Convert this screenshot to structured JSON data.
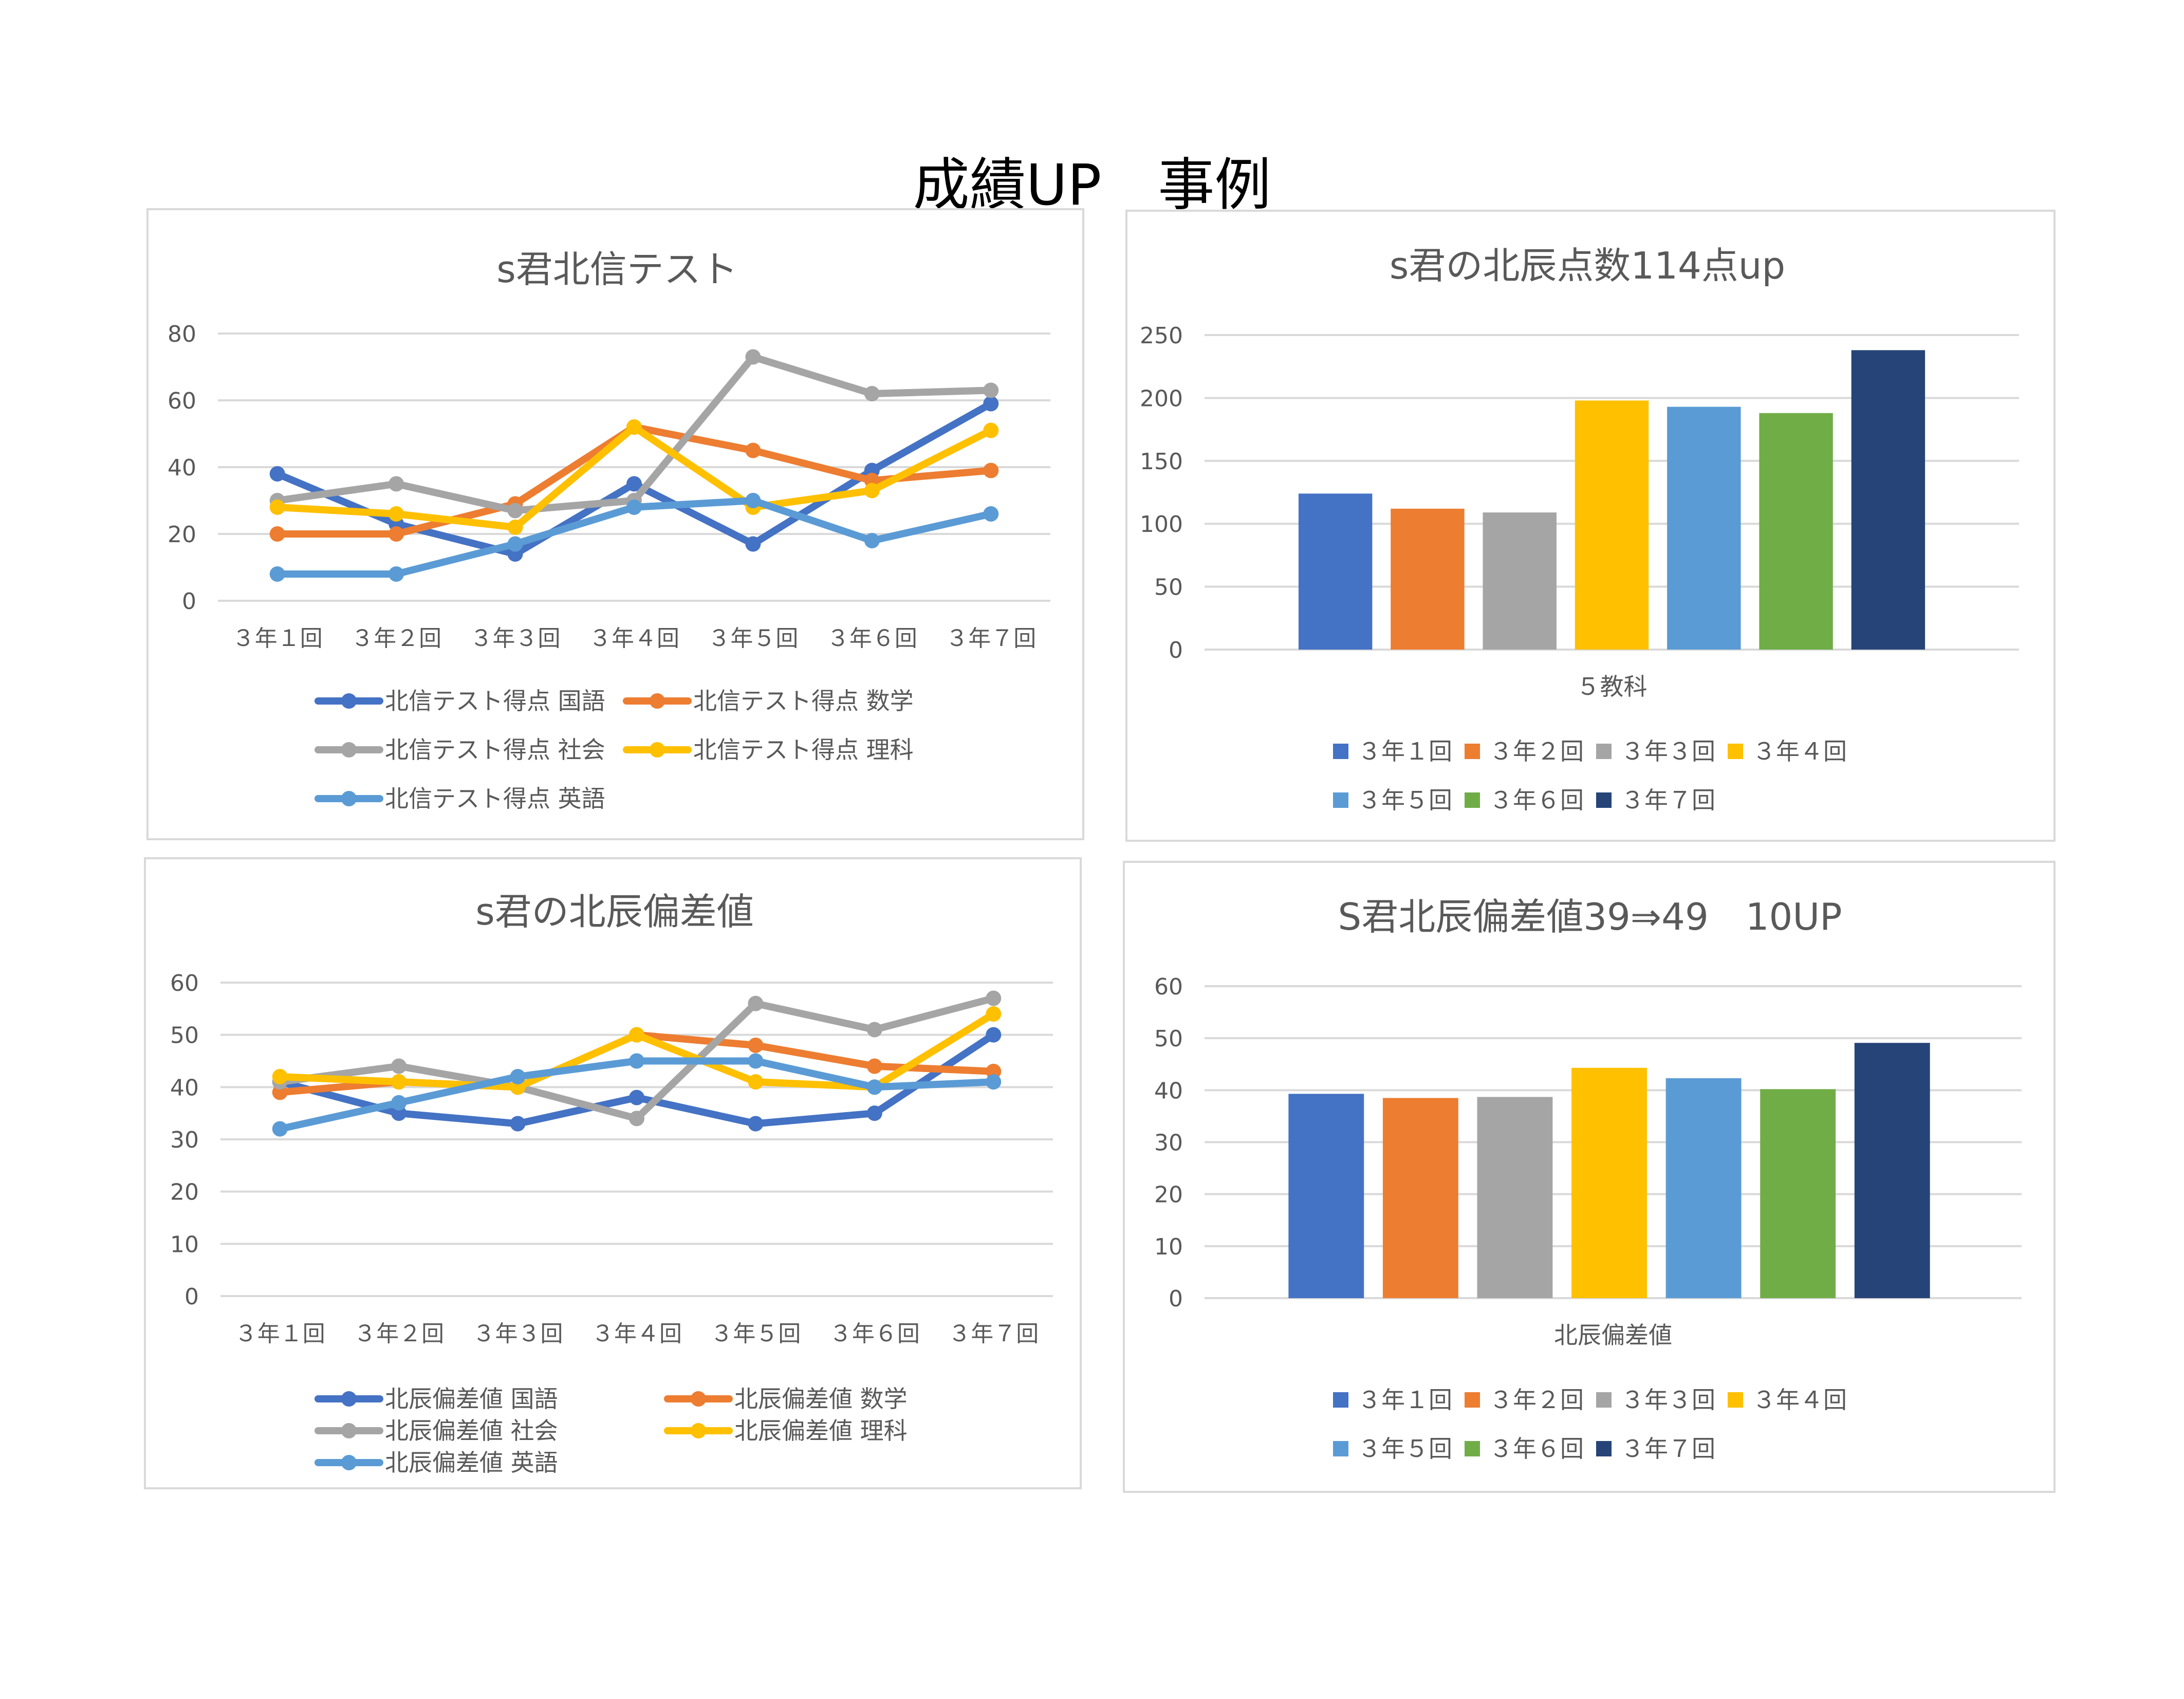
{
  "page_title": "成績UP　事例",
  "chart_data": [
    {
      "type": "line",
      "title": "s君北信テスト",
      "categories": [
        "３年１回",
        "３年２回",
        "３年３回",
        "３年４回",
        "３年５回",
        "３年６回",
        "３年７回"
      ],
      "ylim": [
        0,
        80
      ],
      "yticks": [
        0,
        20,
        40,
        60,
        80
      ],
      "grid": true,
      "legend_position": "bottom",
      "series": [
        {
          "name": "北信テスト得点 国語",
          "color": "#4472C4",
          "values": [
            38,
            23,
            14,
            35,
            17,
            39,
            59
          ]
        },
        {
          "name": "北信テスト得点 数学",
          "color": "#ED7D31",
          "values": [
            20,
            20,
            29,
            52,
            45,
            36,
            39
          ]
        },
        {
          "name": "北信テスト得点 社会",
          "color": "#A5A5A5",
          "values": [
            30,
            35,
            27,
            30,
            73,
            62,
            63
          ]
        },
        {
          "name": "北信テスト得点 理科",
          "color": "#FFC000",
          "values": [
            28,
            26,
            22,
            52,
            28,
            33,
            51
          ]
        },
        {
          "name": "北信テスト得点 英語",
          "color": "#5B9BD5",
          "values": [
            8,
            8,
            17,
            28,
            30,
            18,
            26
          ]
        }
      ]
    },
    {
      "type": "bar",
      "title": "s君の北辰点数114点up",
      "categories": [
        "５教科"
      ],
      "xlabel": "５教科",
      "ylim": [
        0,
        250
      ],
      "yticks": [
        0,
        50,
        100,
        150,
        200,
        250
      ],
      "grid": true,
      "legend_position": "bottom",
      "series": [
        {
          "name": "３年１回",
          "color": "#4472C4",
          "values": [
            124
          ]
        },
        {
          "name": "３年２回",
          "color": "#ED7D31",
          "values": [
            112
          ]
        },
        {
          "name": "３年３回",
          "color": "#A5A5A5",
          "values": [
            109
          ]
        },
        {
          "name": "３年４回",
          "color": "#FFC000",
          "values": [
            198
          ]
        },
        {
          "name": "３年５回",
          "color": "#5B9BD5",
          "values": [
            193
          ]
        },
        {
          "name": "３年６回",
          "color": "#70AD47",
          "values": [
            188
          ]
        },
        {
          "name": "３年７回",
          "color": "#264478",
          "values": [
            238
          ]
        }
      ]
    },
    {
      "type": "line",
      "title": "s君の北辰偏差値",
      "categories": [
        "３年１回",
        "３年２回",
        "３年３回",
        "３年４回",
        "３年５回",
        "３年６回",
        "３年７回"
      ],
      "ylim": [
        0,
        60
      ],
      "yticks": [
        0,
        10,
        20,
        30,
        40,
        50,
        60
      ],
      "grid": true,
      "legend_position": "bottom",
      "series": [
        {
          "name": "北辰偏差値 国語",
          "color": "#4472C4",
          "values": [
            41,
            35,
            33,
            38,
            33,
            35,
            50
          ]
        },
        {
          "name": "北辰偏差値 数学",
          "color": "#ED7D31",
          "values": [
            39,
            41,
            40,
            50,
            48,
            44,
            43
          ]
        },
        {
          "name": "北辰偏差値 社会",
          "color": "#A5A5A5",
          "values": [
            41,
            44,
            40,
            34,
            56,
            51,
            57
          ]
        },
        {
          "name": "北辰偏差値 理科",
          "color": "#FFC000",
          "values": [
            42,
            41,
            40,
            50,
            41,
            40,
            54
          ]
        },
        {
          "name": "北辰偏差値 英語",
          "color": "#5B9BD5",
          "values": [
            32,
            37,
            42,
            45,
            45,
            40,
            41
          ]
        }
      ]
    },
    {
      "type": "bar",
      "title": "S君北辰偏差値39⇒49　10UP",
      "categories": [
        "北辰偏差値"
      ],
      "xlabel": "北辰偏差値",
      "ylim": [
        0,
        60
      ],
      "yticks": [
        0,
        10,
        20,
        30,
        40,
        50,
        60
      ],
      "grid": true,
      "legend_position": "bottom",
      "series": [
        {
          "name": "３年１回",
          "color": "#4472C4",
          "values": [
            39.3
          ]
        },
        {
          "name": "３年２回",
          "color": "#ED7D31",
          "values": [
            38.5
          ]
        },
        {
          "name": "３年３回",
          "color": "#A5A5A5",
          "values": [
            38.7
          ]
        },
        {
          "name": "３年４回",
          "color": "#FFC000",
          "values": [
            44.3
          ]
        },
        {
          "name": "３年５回",
          "color": "#5B9BD5",
          "values": [
            42.3
          ]
        },
        {
          "name": "３年６回",
          "color": "#70AD47",
          "values": [
            40.2
          ]
        },
        {
          "name": "３年７回",
          "color": "#264478",
          "values": [
            49.1
          ]
        }
      ]
    }
  ]
}
